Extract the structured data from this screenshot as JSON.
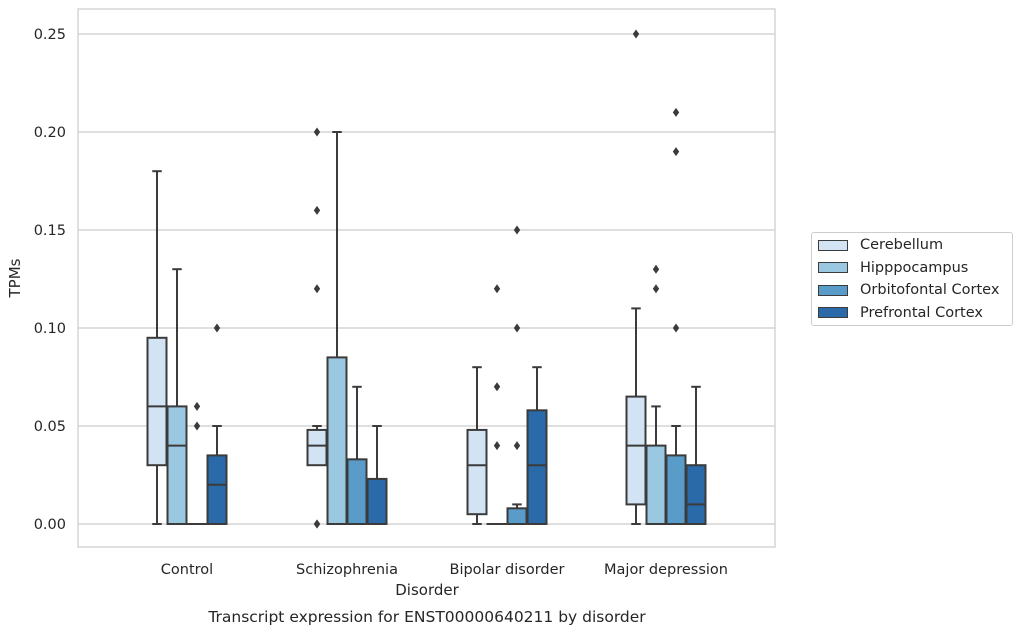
{
  "chart_data": {
    "type": "boxplot",
    "title": "Transcript expression for ENST00000640211 by disorder",
    "xlabel": "Disorder",
    "ylabel": "TPMs",
    "ylim": [
      -0.012,
      0.263
    ],
    "yticks": [
      "0.00",
      "0.05",
      "0.10",
      "0.15",
      "0.20",
      "0.25"
    ],
    "grid": true,
    "legend_position": "right",
    "categories": [
      "Control",
      "Schizophrenia",
      "Bipolar disorder",
      "Major depression"
    ],
    "series": [
      {
        "name": "Cerebellum",
        "color": "#d2e3f3",
        "boxes": [
          {
            "q1": 0.03,
            "median": 0.06,
            "q3": 0.095,
            "whisker_low": 0.0,
            "whisker_high": 0.18,
            "outliers": []
          },
          {
            "q1": 0.03,
            "median": 0.04,
            "q3": 0.048,
            "whisker_low": 0.03,
            "whisker_high": 0.05,
            "outliers": [
              0.2,
              0.16,
              0.12,
              0.0,
              0.0
            ]
          },
          {
            "q1": 0.005,
            "median": 0.03,
            "q3": 0.048,
            "whisker_low": 0.0,
            "whisker_high": 0.08,
            "outliers": []
          },
          {
            "q1": 0.01,
            "median": 0.04,
            "q3": 0.065,
            "whisker_low": 0.0,
            "whisker_high": 0.11,
            "outliers": [
              0.25
            ]
          }
        ]
      },
      {
        "name": "Hipppocampus",
        "color": "#9ac8e0",
        "boxes": [
          {
            "q1": 0.0,
            "median": 0.04,
            "q3": 0.06,
            "whisker_low": 0.0,
            "whisker_high": 0.13,
            "outliers": []
          },
          {
            "q1": 0.0,
            "median": 0.0,
            "q3": 0.085,
            "whisker_low": 0.0,
            "whisker_high": 0.2,
            "outliers": []
          },
          {
            "q1": 0.0,
            "median": 0.0,
            "q3": 0.0,
            "whisker_low": 0.0,
            "whisker_high": 0.0,
            "outliers": [
              0.12,
              0.07,
              0.04
            ]
          },
          {
            "q1": 0.0,
            "median": 0.0,
            "q3": 0.04,
            "whisker_low": 0.0,
            "whisker_high": 0.06,
            "outliers": [
              0.13,
              0.12
            ]
          }
        ]
      },
      {
        "name": "Orbitofontal Cortex",
        "color": "#5a9cc9",
        "boxes": [
          {
            "q1": 0.0,
            "median": 0.0,
            "q3": 0.0,
            "whisker_low": 0.0,
            "whisker_high": 0.0,
            "outliers": [
              0.06,
              0.05
            ]
          },
          {
            "q1": 0.0,
            "median": 0.0,
            "q3": 0.033,
            "whisker_low": 0.0,
            "whisker_high": 0.07,
            "outliers": []
          },
          {
            "q1": 0.0,
            "median": 0.0,
            "q3": 0.008,
            "whisker_low": 0.0,
            "whisker_high": 0.01,
            "outliers": [
              0.15,
              0.1,
              0.04
            ]
          },
          {
            "q1": 0.0,
            "median": 0.0,
            "q3": 0.035,
            "whisker_low": 0.0,
            "whisker_high": 0.05,
            "outliers": [
              0.21,
              0.19,
              0.1
            ]
          }
        ]
      },
      {
        "name": "Prefrontal Cortex",
        "color": "#2a6aa8",
        "boxes": [
          {
            "q1": 0.0,
            "median": 0.02,
            "q3": 0.035,
            "whisker_low": 0.0,
            "whisker_high": 0.05,
            "outliers": [
              0.1
            ]
          },
          {
            "q1": 0.0,
            "median": 0.0,
            "q3": 0.023,
            "whisker_low": 0.0,
            "whisker_high": 0.05,
            "outliers": []
          },
          {
            "q1": 0.0,
            "median": 0.03,
            "q3": 0.058,
            "whisker_low": 0.0,
            "whisker_high": 0.08,
            "outliers": []
          },
          {
            "q1": 0.0,
            "median": 0.01,
            "q3": 0.03,
            "whisker_low": 0.0,
            "whisker_high": 0.07,
            "outliers": []
          }
        ]
      }
    ]
  }
}
